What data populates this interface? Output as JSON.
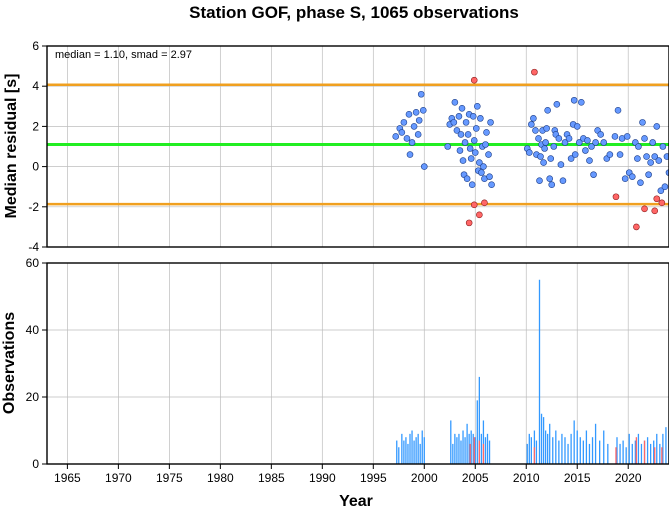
{
  "title": "Station GOF, phase S, 1065 observations",
  "colors": {
    "point_normal": "#6699ff",
    "point_outlier": "#ff6666",
    "median_line": "#22ee22",
    "smad_line": "#f0a020",
    "bar_normal": "#3399ff",
    "bar_outlier": "#ff6666",
    "grid": "#bdbdbd"
  },
  "chart_data": [
    {
      "type": "scatter",
      "annotation": "median = 1.10, smad = 2.97",
      "ylabel": "Median residual [s]",
      "xlabel": "",
      "xlim": [
        1963,
        2024
      ],
      "ylim": [
        -4,
        6
      ],
      "yticks": [
        -4,
        -2,
        0,
        2,
        4,
        6
      ],
      "grid": true,
      "median": 1.1,
      "upper_limit": 4.07,
      "lower_limit": -1.87,
      "series": [
        {
          "points": [
            [
              1997.2,
              1.5
            ],
            [
              1997.6,
              1.9
            ],
            [
              1997.8,
              1.7
            ],
            [
              1998.0,
              2.2
            ],
            [
              1998.3,
              1.4
            ],
            [
              1998.5,
              2.6
            ],
            [
              1998.6,
              0.6
            ],
            [
              1998.8,
              1.2
            ],
            [
              1999.0,
              2.0
            ],
            [
              1999.2,
              2.7
            ],
            [
              1999.4,
              1.6
            ],
            [
              1999.5,
              2.3
            ],
            [
              1999.7,
              3.6
            ],
            [
              1999.9,
              2.8
            ],
            [
              2000.0,
              0.0
            ],
            [
              2002.3,
              1.0
            ],
            [
              2002.5,
              2.1
            ],
            [
              2002.7,
              2.4
            ],
            [
              2002.9,
              2.2
            ],
            [
              2003.0,
              3.2
            ],
            [
              2003.2,
              1.8
            ],
            [
              2003.4,
              2.5
            ],
            [
              2003.5,
              0.8
            ],
            [
              2003.6,
              1.6
            ],
            [
              2003.7,
              2.9
            ],
            [
              2003.8,
              0.3
            ],
            [
              2003.9,
              -0.4
            ],
            [
              2004.0,
              1.2
            ],
            [
              2004.1,
              2.2
            ],
            [
              2004.2,
              -0.6
            ],
            [
              2004.3,
              1.6
            ],
            [
              2004.4,
              2.6
            ],
            [
              2004.5,
              0.9
            ],
            [
              2004.6,
              0.4
            ],
            [
              2004.7,
              -0.9
            ],
            [
              2004.8,
              2.5
            ],
            [
              2004.9,
              1.3
            ],
            [
              2005.0,
              0.7
            ],
            [
              2005.1,
              1.9
            ],
            [
              2005.2,
              3.0
            ],
            [
              2005.3,
              -0.2
            ],
            [
              2005.4,
              0.2
            ],
            [
              2005.5,
              2.4
            ],
            [
              2005.6,
              -0.3
            ],
            [
              2005.7,
              1.0
            ],
            [
              2005.8,
              0.0
            ],
            [
              2005.9,
              -0.6
            ],
            [
              2006.0,
              1.1
            ],
            [
              2006.1,
              1.7
            ],
            [
              2006.3,
              0.6
            ],
            [
              2006.4,
              -0.5
            ],
            [
              2006.5,
              2.2
            ],
            [
              2006.6,
              -0.9
            ],
            [
              2010.1,
              0.9
            ],
            [
              2010.3,
              0.7
            ],
            [
              2010.5,
              2.1
            ],
            [
              2010.7,
              2.4
            ],
            [
              2010.9,
              1.8
            ],
            [
              2011.0,
              0.6
            ],
            [
              2011.2,
              1.4
            ],
            [
              2011.3,
              -0.7
            ],
            [
              2011.4,
              0.5
            ],
            [
              2011.5,
              1.1
            ],
            [
              2011.6,
              1.8
            ],
            [
              2011.7,
              0.2
            ],
            [
              2011.8,
              0.9
            ],
            [
              2011.9,
              1.2
            ],
            [
              2012.0,
              1.9
            ],
            [
              2012.1,
              2.8
            ],
            [
              2012.3,
              -0.6
            ],
            [
              2012.4,
              0.4
            ],
            [
              2012.5,
              -0.9
            ],
            [
              2012.7,
              1.0
            ],
            [
              2012.8,
              1.8
            ],
            [
              2012.9,
              1.6
            ],
            [
              2013.0,
              3.1
            ],
            [
              2013.2,
              1.4
            ],
            [
              2013.4,
              0.1
            ],
            [
              2013.6,
              -0.7
            ],
            [
              2013.8,
              1.2
            ],
            [
              2014.0,
              1.6
            ],
            [
              2014.2,
              1.4
            ],
            [
              2014.4,
              0.4
            ],
            [
              2014.6,
              2.1
            ],
            [
              2014.7,
              3.3
            ],
            [
              2014.8,
              0.6
            ],
            [
              2015.0,
              2.0
            ],
            [
              2015.2,
              1.2
            ],
            [
              2015.4,
              3.2
            ],
            [
              2015.6,
              1.4
            ],
            [
              2015.8,
              0.8
            ],
            [
              2016.0,
              1.3
            ],
            [
              2016.2,
              0.3
            ],
            [
              2016.4,
              1.0
            ],
            [
              2016.6,
              -0.4
            ],
            [
              2016.8,
              1.2
            ],
            [
              2017.0,
              1.8
            ],
            [
              2017.3,
              1.6
            ],
            [
              2017.6,
              1.2
            ],
            [
              2017.9,
              0.4
            ],
            [
              2018.2,
              0.6
            ],
            [
              2018.7,
              1.5
            ],
            [
              2019.0,
              2.8
            ],
            [
              2019.2,
              0.6
            ],
            [
              2019.4,
              1.4
            ],
            [
              2019.7,
              -0.6
            ],
            [
              2019.9,
              1.5
            ],
            [
              2020.1,
              -0.3
            ],
            [
              2020.4,
              -0.5
            ],
            [
              2020.7,
              1.2
            ],
            [
              2020.9,
              0.4
            ],
            [
              2021.0,
              1.0
            ],
            [
              2021.2,
              -0.8
            ],
            [
              2021.4,
              2.2
            ],
            [
              2021.6,
              1.4
            ],
            [
              2021.8,
              0.5
            ],
            [
              2022.0,
              -0.4
            ],
            [
              2022.2,
              0.2
            ],
            [
              2022.4,
              1.2
            ],
            [
              2022.6,
              0.5
            ],
            [
              2022.8,
              2.0
            ],
            [
              2023.0,
              0.3
            ],
            [
              2023.2,
              -1.2
            ],
            [
              2023.4,
              1.0
            ],
            [
              2023.6,
              -1.0
            ],
            [
              2023.8,
              0.5
            ],
            [
              2024.0,
              -0.3
            ]
          ],
          "outliers": [
            [
              2004.4,
              -2.8
            ],
            [
              2004.9,
              4.3
            ],
            [
              2004.9,
              -1.9
            ],
            [
              2005.4,
              -2.4
            ],
            [
              2005.9,
              -1.8
            ],
            [
              2010.8,
              4.7
            ],
            [
              2018.8,
              -1.5
            ],
            [
              2020.8,
              -3.0
            ],
            [
              2021.6,
              -2.1
            ],
            [
              2022.6,
              -2.2
            ],
            [
              2022.8,
              -1.6
            ],
            [
              2023.3,
              -1.8
            ]
          ]
        }
      ]
    },
    {
      "type": "bar",
      "ylabel": "Observations",
      "xlabel": "Year",
      "xlim": [
        1963,
        2024
      ],
      "ylim": [
        0,
        60
      ],
      "xticks": [
        1965,
        1970,
        1975,
        1980,
        1985,
        1990,
        1995,
        2000,
        2005,
        2010,
        2015,
        2020
      ],
      "yticks": [
        0,
        20,
        40,
        60
      ],
      "grid": true,
      "series": [
        {
          "name": "",
          "bars": [
            [
              1997.3,
              7
            ],
            [
              1997.5,
              5
            ],
            [
              1997.8,
              9
            ],
            [
              1998.0,
              7
            ],
            [
              1998.2,
              8
            ],
            [
              1998.4,
              6
            ],
            [
              1998.6,
              9
            ],
            [
              1998.8,
              10
            ],
            [
              1999.0,
              7
            ],
            [
              1999.2,
              8
            ],
            [
              1999.4,
              9
            ],
            [
              1999.6,
              6
            ],
            [
              1999.8,
              10
            ],
            [
              2000.0,
              8
            ],
            [
              2002.6,
              13
            ],
            [
              2002.8,
              6
            ],
            [
              2003.0,
              9
            ],
            [
              2003.2,
              8
            ],
            [
              2003.4,
              9
            ],
            [
              2003.6,
              7
            ],
            [
              2003.8,
              10
            ],
            [
              2004.0,
              8
            ],
            [
              2004.2,
              12
            ],
            [
              2004.4,
              9
            ],
            [
              2004.6,
              10
            ],
            [
              2004.8,
              9
            ],
            [
              2005.0,
              8
            ],
            [
              2005.2,
              19
            ],
            [
              2005.4,
              26
            ],
            [
              2005.6,
              9
            ],
            [
              2005.8,
              13
            ],
            [
              2006.0,
              8
            ],
            [
              2006.2,
              9
            ],
            [
              2006.4,
              7
            ],
            [
              2010.1,
              6
            ],
            [
              2010.3,
              9
            ],
            [
              2010.5,
              8
            ],
            [
              2010.8,
              10
            ],
            [
              2011.0,
              7
            ],
            [
              2011.3,
              55
            ],
            [
              2011.5,
              15
            ],
            [
              2011.7,
              14
            ],
            [
              2011.9,
              10
            ],
            [
              2012.1,
              9
            ],
            [
              2012.3,
              12
            ],
            [
              2012.6,
              8
            ],
            [
              2012.9,
              10
            ],
            [
              2013.2,
              7
            ],
            [
              2013.5,
              9
            ],
            [
              2013.8,
              8
            ],
            [
              2014.1,
              6
            ],
            [
              2014.4,
              9
            ],
            [
              2014.7,
              13
            ],
            [
              2015.0,
              10
            ],
            [
              2015.3,
              8
            ],
            [
              2015.6,
              7
            ],
            [
              2015.9,
              10
            ],
            [
              2016.2,
              6
            ],
            [
              2016.5,
              8
            ],
            [
              2016.8,
              12
            ],
            [
              2017.2,
              7
            ],
            [
              2017.6,
              10
            ],
            [
              2018.0,
              6
            ],
            [
              2018.9,
              8
            ],
            [
              2019.2,
              6
            ],
            [
              2019.5,
              7
            ],
            [
              2019.8,
              5
            ],
            [
              2020.1,
              9
            ],
            [
              2020.4,
              6
            ],
            [
              2020.7,
              7
            ],
            [
              2021.0,
              9
            ],
            [
              2021.3,
              6
            ],
            [
              2021.6,
              7
            ],
            [
              2021.9,
              8
            ],
            [
              2022.2,
              6
            ],
            [
              2022.5,
              7
            ],
            [
              2022.8,
              9
            ],
            [
              2023.1,
              6
            ],
            [
              2023.4,
              9
            ],
            [
              2023.7,
              11
            ],
            [
              2024.0,
              10
            ]
          ],
          "outlier_bars": [
            [
              2004.5,
              6
            ],
            [
              2004.9,
              8
            ],
            [
              2005.4,
              7
            ],
            [
              2005.8,
              6
            ],
            [
              2010.8,
              5
            ],
            [
              2018.8,
              5
            ],
            [
              2020.8,
              8
            ],
            [
              2021.6,
              7
            ],
            [
              2022.6,
              5
            ],
            [
              2023.3,
              5
            ]
          ]
        }
      ]
    }
  ]
}
